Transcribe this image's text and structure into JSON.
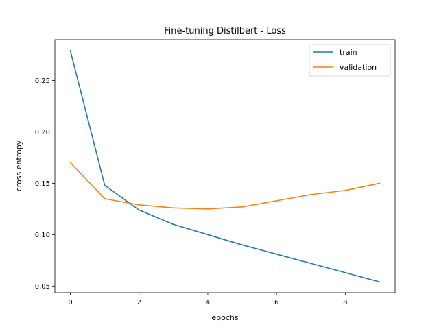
{
  "chart_data": {
    "type": "line",
    "title": "Fine-tuning Distilbert - Loss",
    "xlabel": "epochs",
    "ylabel": "cross entropy",
    "x": [
      0,
      1,
      2,
      3,
      4,
      5,
      6,
      7,
      8,
      9
    ],
    "xlim": [
      -0.45,
      9.45
    ],
    "ylim": [
      0.0435,
      0.2897
    ],
    "xticks": [
      0,
      2,
      4,
      6,
      8
    ],
    "yticks": [
      0.05,
      0.1,
      0.15,
      0.2,
      0.25
    ],
    "xtick_labels": [
      "0",
      "2",
      "4",
      "6",
      "8"
    ],
    "ytick_labels": [
      "0.05",
      "0.10",
      "0.15",
      "0.20",
      "0.25"
    ],
    "grid": false,
    "legend_position": "top-right",
    "series": [
      {
        "name": "train",
        "color": "#1f77b4",
        "values": [
          0.279,
          0.148,
          0.124,
          0.11,
          0.1,
          0.09,
          0.081,
          0.072,
          0.063,
          0.054
        ]
      },
      {
        "name": "validation",
        "color": "#ff7f0e",
        "values": [
          0.17,
          0.135,
          0.129,
          0.126,
          0.125,
          0.127,
          0.133,
          0.139,
          0.143,
          0.15
        ]
      }
    ]
  }
}
